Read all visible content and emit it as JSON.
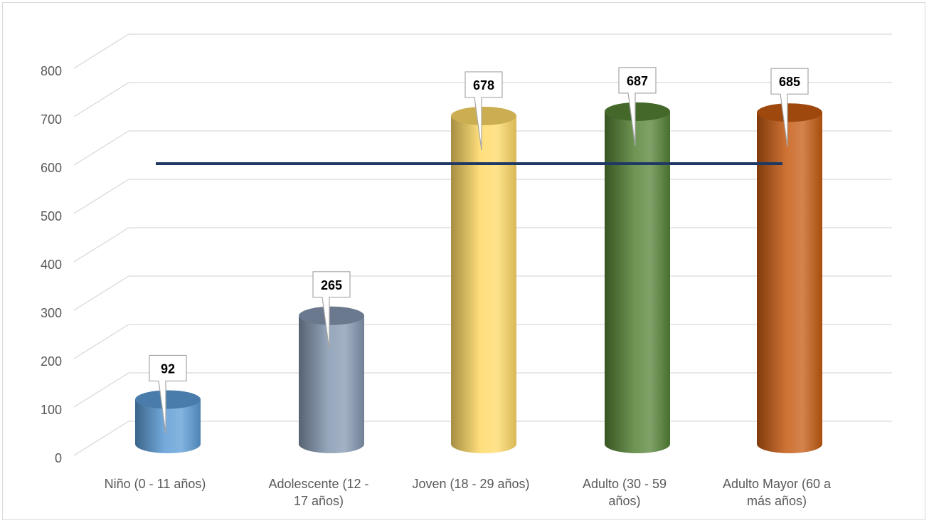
{
  "chart_data": {
    "type": "bar",
    "style": "3d-cylinder",
    "categories": [
      [
        "Niño (0 - 11 años)"
      ],
      [
        "Adolescente (12 -",
        "17 años)"
      ],
      [
        "Joven (18 - 29 años)"
      ],
      [
        "Adulto (30 - 59",
        "años)"
      ],
      [
        "Adulto Mayor (60 a",
        "más años)"
      ]
    ],
    "values": [
      92,
      265,
      678,
      687,
      685
    ],
    "colors": [
      "#5b9bd5",
      "#8497b0",
      "#ffd966",
      "#548235",
      "#c55a11"
    ],
    "reference_line": {
      "value": 600,
      "color": "#1f3864"
    },
    "ylim": [
      0,
      800
    ],
    "yticks": [
      0,
      100,
      200,
      300,
      400,
      500,
      600,
      700,
      800
    ],
    "grid": true,
    "title": "",
    "xlabel": "",
    "ylabel": ""
  }
}
